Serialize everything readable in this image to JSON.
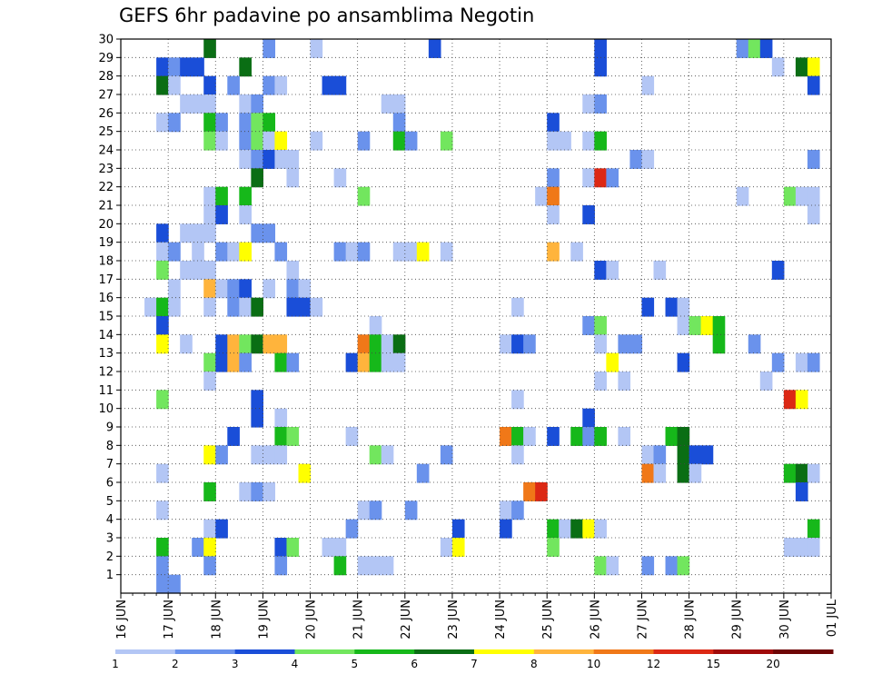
{
  "chart_data": {
    "type": "heatmap",
    "title": "GEFS 6hr padavine po ansamblima Negotin",
    "xlabel": "",
    "ylabel": "",
    "x_tick_labels": [
      "16 JUN",
      "17 JUN",
      "18 JUN",
      "19 JUN",
      "20 JUN",
      "21 JUN",
      "22 JUN",
      "23 JUN",
      "24 JUN",
      "25 JUN",
      "26 JUN",
      "27 JUN",
      "28 JUN",
      "29 JUN",
      "30 JUN",
      "01 JUL"
    ],
    "y_tick_labels": [
      "1",
      "2",
      "3",
      "4",
      "5",
      "6",
      "7",
      "8",
      "9",
      "10",
      "11",
      "12",
      "13",
      "14",
      "15",
      "16",
      "17",
      "18",
      "19",
      "20",
      "21",
      "22",
      "23",
      "24",
      "25",
      "26",
      "27",
      "28",
      "29",
      "30"
    ],
    "xlim_days": [
      0,
      15
    ],
    "time_step_hours": 6,
    "ylim": [
      0,
      30
    ],
    "grid": true,
    "legend": {
      "placement": "bottom",
      "labels": [
        "1",
        "2",
        "3",
        "4",
        "5",
        "6",
        "7",
        "8",
        "10",
        "12",
        "15",
        "20"
      ],
      "colors": [
        "#b3c6f5",
        "#6a92ec",
        "#1a4ed8",
        "#72e65e",
        "#16b81a",
        "#0a6e14",
        "#ffff00",
        "#ffb43c",
        "#f07818",
        "#dc2814",
        "#a00a0a",
        "#6e0505"
      ]
    },
    "levels_colors": [
      {
        "min": 1,
        "color": "#b3c6f5"
      },
      {
        "min": 2,
        "color": "#6a92ec"
      },
      {
        "min": 3,
        "color": "#1a4ed8"
      },
      {
        "min": 4,
        "color": "#72e65e"
      },
      {
        "min": 5,
        "color": "#16b81a"
      },
      {
        "min": 6,
        "color": "#0a6e14"
      },
      {
        "min": 7,
        "color": "#ffff00"
      },
      {
        "min": 8,
        "color": "#ffb43c"
      },
      {
        "min": 10,
        "color": "#f07818"
      },
      {
        "min": 12,
        "color": "#dc2814"
      },
      {
        "min": 15,
        "color": "#a00a0a"
      },
      {
        "min": 20,
        "color": "#6e0505"
      }
    ],
    "cells_note": "each cell: member (y), 6-hour step index from 16 JUN 00Z (x), precipitation level index into levels_colors",
    "cells": [
      [
        30,
        7,
        5
      ],
      [
        30,
        12,
        1
      ],
      [
        30,
        16,
        0
      ],
      [
        30,
        26,
        2
      ],
      [
        30,
        40,
        2
      ],
      [
        30,
        52,
        1
      ],
      [
        30,
        53,
        3
      ],
      [
        30,
        54,
        2
      ],
      [
        29,
        3,
        2
      ],
      [
        29,
        4,
        1
      ],
      [
        29,
        5,
        2
      ],
      [
        29,
        6,
        2
      ],
      [
        29,
        10,
        5
      ],
      [
        29,
        40,
        2
      ],
      [
        29,
        55,
        0
      ],
      [
        29,
        57,
        5
      ],
      [
        29,
        58,
        6
      ],
      [
        28,
        3,
        5
      ],
      [
        28,
        4,
        0
      ],
      [
        28,
        7,
        2
      ],
      [
        28,
        9,
        1
      ],
      [
        28,
        12,
        1
      ],
      [
        28,
        13,
        0
      ],
      [
        28,
        17,
        2
      ],
      [
        28,
        18,
        2
      ],
      [
        28,
        44,
        0
      ],
      [
        28,
        58,
        2
      ],
      [
        27,
        5,
        0
      ],
      [
        27,
        6,
        0
      ],
      [
        27,
        7,
        0
      ],
      [
        27,
        10,
        0
      ],
      [
        27,
        11,
        1
      ],
      [
        27,
        22,
        0
      ],
      [
        27,
        23,
        0
      ],
      [
        27,
        39,
        0
      ],
      [
        27,
        40,
        1
      ],
      [
        26,
        3,
        0
      ],
      [
        26,
        4,
        1
      ],
      [
        26,
        7,
        4
      ],
      [
        26,
        8,
        1
      ],
      [
        26,
        10,
        1
      ],
      [
        26,
        11,
        3
      ],
      [
        26,
        12,
        4
      ],
      [
        26,
        23,
        1
      ],
      [
        26,
        36,
        2
      ],
      [
        25,
        7,
        3
      ],
      [
        25,
        8,
        0
      ],
      [
        25,
        10,
        1
      ],
      [
        25,
        11,
        3
      ],
      [
        25,
        12,
        0
      ],
      [
        25,
        13,
        6
      ],
      [
        25,
        16,
        0
      ],
      [
        25,
        20,
        1
      ],
      [
        25,
        23,
        4
      ],
      [
        25,
        24,
        1
      ],
      [
        25,
        27,
        3
      ],
      [
        25,
        36,
        0
      ],
      [
        25,
        37,
        0
      ],
      [
        25,
        39,
        0
      ],
      [
        25,
        40,
        4
      ],
      [
        24,
        10,
        0
      ],
      [
        24,
        11,
        1
      ],
      [
        24,
        12,
        2
      ],
      [
        24,
        13,
        0
      ],
      [
        24,
        14,
        0
      ],
      [
        24,
        43,
        1
      ],
      [
        24,
        44,
        0
      ],
      [
        24,
        58,
        1
      ],
      [
        23,
        11,
        5
      ],
      [
        23,
        14,
        0
      ],
      [
        23,
        18,
        0
      ],
      [
        23,
        36,
        1
      ],
      [
        23,
        39,
        0
      ],
      [
        23,
        40,
        9
      ],
      [
        23,
        41,
        1
      ],
      [
        22,
        7,
        0
      ],
      [
        22,
        8,
        4
      ],
      [
        22,
        10,
        4
      ],
      [
        22,
        20,
        3
      ],
      [
        22,
        35,
        0
      ],
      [
        22,
        36,
        8
      ],
      [
        22,
        52,
        0
      ],
      [
        22,
        56,
        3
      ],
      [
        22,
        57,
        0
      ],
      [
        22,
        58,
        0
      ],
      [
        21,
        7,
        0
      ],
      [
        21,
        8,
        2
      ],
      [
        21,
        10,
        0
      ],
      [
        21,
        36,
        0
      ],
      [
        21,
        39,
        2
      ],
      [
        21,
        58,
        0
      ],
      [
        20,
        3,
        2
      ],
      [
        20,
        5,
        0
      ],
      [
        20,
        6,
        0
      ],
      [
        20,
        7,
        0
      ],
      [
        20,
        11,
        1
      ],
      [
        20,
        12,
        1
      ],
      [
        19,
        3,
        0
      ],
      [
        19,
        4,
        1
      ],
      [
        19,
        6,
        0
      ],
      [
        19,
        8,
        1
      ],
      [
        19,
        9,
        0
      ],
      [
        19,
        10,
        6
      ],
      [
        19,
        13,
        1
      ],
      [
        19,
        18,
        1
      ],
      [
        19,
        19,
        0
      ],
      [
        19,
        20,
        1
      ],
      [
        19,
        23,
        0
      ],
      [
        19,
        24,
        0
      ],
      [
        19,
        25,
        6
      ],
      [
        19,
        27,
        0
      ],
      [
        19,
        36,
        7
      ],
      [
        19,
        38,
        0
      ],
      [
        18,
        3,
        3
      ],
      [
        18,
        5,
        0
      ],
      [
        18,
        6,
        0
      ],
      [
        18,
        7,
        0
      ],
      [
        18,
        14,
        0
      ],
      [
        18,
        40,
        2
      ],
      [
        18,
        41,
        0
      ],
      [
        18,
        45,
        0
      ],
      [
        18,
        55,
        2
      ],
      [
        17,
        4,
        0
      ],
      [
        17,
        7,
        7
      ],
      [
        17,
        8,
        0
      ],
      [
        17,
        9,
        1
      ],
      [
        17,
        10,
        2
      ],
      [
        17,
        12,
        0
      ],
      [
        17,
        14,
        1
      ],
      [
        17,
        15,
        0
      ],
      [
        16,
        2,
        0
      ],
      [
        16,
        3,
        4
      ],
      [
        16,
        4,
        0
      ],
      [
        16,
        7,
        0
      ],
      [
        16,
        9,
        1
      ],
      [
        16,
        10,
        0
      ],
      [
        16,
        11,
        5
      ],
      [
        16,
        14,
        2
      ],
      [
        16,
        15,
        2
      ],
      [
        16,
        16,
        0
      ],
      [
        16,
        33,
        0
      ],
      [
        16,
        44,
        2
      ],
      [
        16,
        46,
        2
      ],
      [
        16,
        47,
        0
      ],
      [
        15,
        3,
        2
      ],
      [
        15,
        21,
        0
      ],
      [
        15,
        39,
        1
      ],
      [
        15,
        40,
        3
      ],
      [
        15,
        47,
        0
      ],
      [
        15,
        48,
        3
      ],
      [
        15,
        49,
        6
      ],
      [
        15,
        50,
        4
      ],
      [
        14,
        3,
        6
      ],
      [
        14,
        5,
        0
      ],
      [
        14,
        8,
        2
      ],
      [
        14,
        9,
        7
      ],
      [
        14,
        10,
        3
      ],
      [
        14,
        11,
        5
      ],
      [
        14,
        12,
        7
      ],
      [
        14,
        13,
        7
      ],
      [
        14,
        20,
        8
      ],
      [
        14,
        21,
        4
      ],
      [
        14,
        22,
        0
      ],
      [
        14,
        23,
        5
      ],
      [
        14,
        32,
        0
      ],
      [
        14,
        33,
        2
      ],
      [
        14,
        34,
        1
      ],
      [
        14,
        40,
        0
      ],
      [
        14,
        42,
        1
      ],
      [
        14,
        43,
        1
      ],
      [
        14,
        50,
        4
      ],
      [
        14,
        53,
        1
      ],
      [
        13,
        7,
        3
      ],
      [
        13,
        8,
        2
      ],
      [
        13,
        9,
        7
      ],
      [
        13,
        10,
        1
      ],
      [
        13,
        13,
        4
      ],
      [
        13,
        14,
        1
      ],
      [
        13,
        19,
        2
      ],
      [
        13,
        20,
        7
      ],
      [
        13,
        21,
        4
      ],
      [
        13,
        22,
        0
      ],
      [
        13,
        23,
        0
      ],
      [
        13,
        41,
        6
      ],
      [
        13,
        47,
        2
      ],
      [
        13,
        55,
        1
      ],
      [
        13,
        57,
        0
      ],
      [
        13,
        58,
        1
      ],
      [
        12,
        7,
        0
      ],
      [
        12,
        40,
        0
      ],
      [
        12,
        42,
        0
      ],
      [
        12,
        54,
        0
      ],
      [
        11,
        3,
        3
      ],
      [
        11,
        11,
        2
      ],
      [
        11,
        33,
        0
      ],
      [
        11,
        56,
        9
      ],
      [
        11,
        57,
        6
      ],
      [
        10,
        11,
        2
      ],
      [
        10,
        13,
        0
      ],
      [
        10,
        39,
        2
      ],
      [
        9,
        9,
        2
      ],
      [
        9,
        13,
        4
      ],
      [
        9,
        14,
        3
      ],
      [
        9,
        19,
        0
      ],
      [
        9,
        32,
        8
      ],
      [
        9,
        33,
        4
      ],
      [
        9,
        34,
        0
      ],
      [
        9,
        36,
        2
      ],
      [
        9,
        38,
        4
      ],
      [
        9,
        39,
        1
      ],
      [
        9,
        40,
        4
      ],
      [
        9,
        42,
        0
      ],
      [
        9,
        46,
        4
      ],
      [
        9,
        47,
        5
      ],
      [
        8,
        7,
        6
      ],
      [
        8,
        8,
        1
      ],
      [
        8,
        11,
        0
      ],
      [
        8,
        12,
        0
      ],
      [
        8,
        13,
        0
      ],
      [
        8,
        21,
        3
      ],
      [
        8,
        22,
        0
      ],
      [
        8,
        27,
        1
      ],
      [
        8,
        33,
        0
      ],
      [
        8,
        44,
        0
      ],
      [
        8,
        45,
        1
      ],
      [
        8,
        47,
        5
      ],
      [
        8,
        48,
        2
      ],
      [
        8,
        49,
        2
      ],
      [
        7,
        3,
        0
      ],
      [
        7,
        15,
        6
      ],
      [
        7,
        25,
        1
      ],
      [
        7,
        44,
        8
      ],
      [
        7,
        45,
        0
      ],
      [
        7,
        47,
        5
      ],
      [
        7,
        48,
        0
      ],
      [
        7,
        56,
        4
      ],
      [
        7,
        57,
        5
      ],
      [
        7,
        58,
        0
      ],
      [
        6,
        7,
        4
      ],
      [
        6,
        10,
        0
      ],
      [
        6,
        11,
        1
      ],
      [
        6,
        12,
        0
      ],
      [
        6,
        34,
        8
      ],
      [
        6,
        35,
        9
      ],
      [
        6,
        57,
        2
      ],
      [
        5,
        3,
        0
      ],
      [
        5,
        20,
        0
      ],
      [
        5,
        21,
        1
      ],
      [
        5,
        24,
        1
      ],
      [
        5,
        32,
        0
      ],
      [
        5,
        33,
        1
      ],
      [
        4,
        7,
        0
      ],
      [
        4,
        8,
        2
      ],
      [
        4,
        19,
        1
      ],
      [
        4,
        28,
        2
      ],
      [
        4,
        32,
        2
      ],
      [
        4,
        36,
        4
      ],
      [
        4,
        37,
        0
      ],
      [
        4,
        38,
        5
      ],
      [
        4,
        39,
        6
      ],
      [
        4,
        40,
        0
      ],
      [
        4,
        58,
        4
      ],
      [
        3,
        3,
        4
      ],
      [
        3,
        6,
        1
      ],
      [
        3,
        7,
        6
      ],
      [
        3,
        13,
        2
      ],
      [
        3,
        14,
        3
      ],
      [
        3,
        17,
        0
      ],
      [
        3,
        18,
        0
      ],
      [
        3,
        27,
        0
      ],
      [
        3,
        28,
        6
      ],
      [
        3,
        36,
        3
      ],
      [
        3,
        56,
        0
      ],
      [
        3,
        57,
        0
      ],
      [
        3,
        58,
        0
      ],
      [
        2,
        3,
        1
      ],
      [
        2,
        7,
        1
      ],
      [
        2,
        13,
        1
      ],
      [
        2,
        18,
        4
      ],
      [
        2,
        20,
        0
      ],
      [
        2,
        21,
        0
      ],
      [
        2,
        22,
        0
      ],
      [
        2,
        40,
        3
      ],
      [
        2,
        41,
        0
      ],
      [
        2,
        44,
        1
      ],
      [
        2,
        46,
        1
      ],
      [
        2,
        47,
        3
      ],
      [
        1,
        3,
        1
      ],
      [
        1,
        4,
        1
      ]
    ]
  }
}
